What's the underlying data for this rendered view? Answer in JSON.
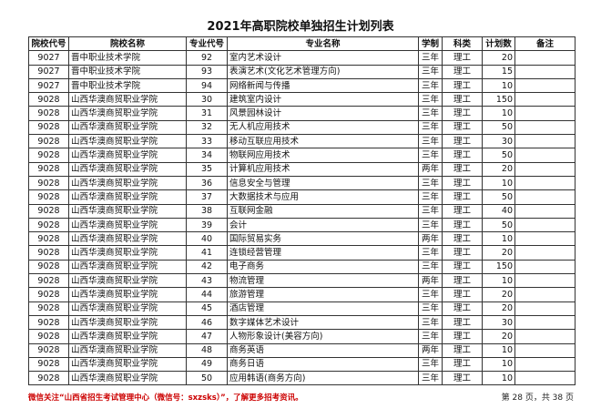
{
  "title": "2021年高职院校单独招生计划列表",
  "headers": [
    "院校代号",
    "院校名称",
    "专业代号",
    "专业名称",
    "学制",
    "科类",
    "计划数",
    "备注"
  ],
  "rows": [
    [
      "9027",
      "晋中职业技术学院",
      "92",
      "室内艺术设计",
      "三年",
      "理工",
      "20",
      ""
    ],
    [
      "9027",
      "晋中职业技术学院",
      "93",
      "表演艺术(文化艺术管理方向)",
      "三年",
      "理工",
      "15",
      ""
    ],
    [
      "9027",
      "晋中职业技术学院",
      "94",
      "网络新闻与传播",
      "三年",
      "理工",
      "10",
      ""
    ],
    [
      "9028",
      "山西华澳商贸职业学院",
      "30",
      "建筑室内设计",
      "三年",
      "理工",
      "150",
      ""
    ],
    [
      "9028",
      "山西华澳商贸职业学院",
      "31",
      "风景园林设计",
      "三年",
      "理工",
      "10",
      ""
    ],
    [
      "9028",
      "山西华澳商贸职业学院",
      "32",
      "无人机应用技术",
      "三年",
      "理工",
      "50",
      ""
    ],
    [
      "9028",
      "山西华澳商贸职业学院",
      "33",
      "移动互联应用技术",
      "三年",
      "理工",
      "30",
      ""
    ],
    [
      "9028",
      "山西华澳商贸职业学院",
      "34",
      "物联网应用技术",
      "三年",
      "理工",
      "50",
      ""
    ],
    [
      "9028",
      "山西华澳商贸职业学院",
      "35",
      "计算机应用技术",
      "两年",
      "理工",
      "20",
      ""
    ],
    [
      "9028",
      "山西华澳商贸职业学院",
      "36",
      "信息安全与管理",
      "三年",
      "理工",
      "10",
      ""
    ],
    [
      "9028",
      "山西华澳商贸职业学院",
      "37",
      "大数据技术与应用",
      "三年",
      "理工",
      "50",
      ""
    ],
    [
      "9028",
      "山西华澳商贸职业学院",
      "38",
      "互联网金融",
      "三年",
      "理工",
      "40",
      ""
    ],
    [
      "9028",
      "山西华澳商贸职业学院",
      "39",
      "会计",
      "三年",
      "理工",
      "50",
      ""
    ],
    [
      "9028",
      "山西华澳商贸职业学院",
      "40",
      "国际贸易实务",
      "两年",
      "理工",
      "10",
      ""
    ],
    [
      "9028",
      "山西华澳商贸职业学院",
      "41",
      "连锁经营管理",
      "三年",
      "理工",
      "20",
      ""
    ],
    [
      "9028",
      "山西华澳商贸职业学院",
      "42",
      "电子商务",
      "三年",
      "理工",
      "150",
      ""
    ],
    [
      "9028",
      "山西华澳商贸职业学院",
      "43",
      "物流管理",
      "两年",
      "理工",
      "10",
      ""
    ],
    [
      "9028",
      "山西华澳商贸职业学院",
      "44",
      "旅游管理",
      "三年",
      "理工",
      "20",
      ""
    ],
    [
      "9028",
      "山西华澳商贸职业学院",
      "45",
      "酒店管理",
      "三年",
      "理工",
      "20",
      ""
    ],
    [
      "9028",
      "山西华澳商贸职业学院",
      "46",
      "数字媒体艺术设计",
      "三年",
      "理工",
      "30",
      ""
    ],
    [
      "9028",
      "山西华澳商贸职业学院",
      "47",
      "人物形象设计(美容方向)",
      "三年",
      "理工",
      "20",
      ""
    ],
    [
      "9028",
      "山西华澳商贸职业学院",
      "48",
      "商务英语",
      "两年",
      "理工",
      "10",
      ""
    ],
    [
      "9028",
      "山西华澳商贸职业学院",
      "49",
      "商务日语",
      "三年",
      "理工",
      "10",
      ""
    ],
    [
      "9028",
      "山西华澳商贸职业学院",
      "50",
      "应用韩语(商务方向)",
      "三年",
      "理工",
      "10",
      ""
    ]
  ],
  "footer_note": "微信关注“山西省招生考试管理中心（微信号：sxzsks）”，了解更多招考资讯。",
  "page_info": "第 28 页，共 38 页",
  "colors": {
    "footer_note": "#cc0000"
  }
}
